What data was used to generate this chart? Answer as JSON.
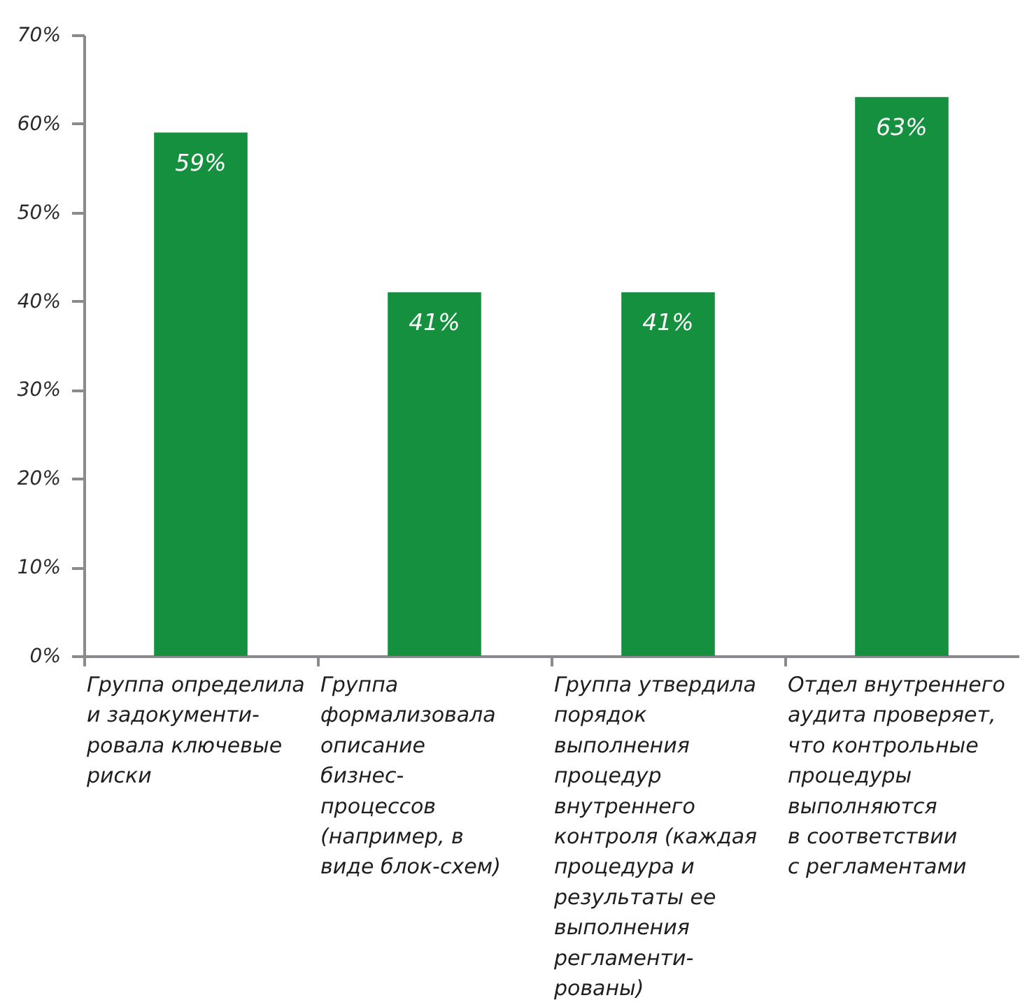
{
  "chart_data": {
    "type": "bar",
    "categories": [
      "Группа определила\nи задокументи-\nровала ключевые\nриски",
      "Группа\nформализовала\nописание\nбизнес-\nпроцессов\n(например, в\nвиде блок-схем)",
      "Группа утвердила\nпорядок\nвыполнения\nпроцедур\nвнутреннего\nконтроля (каждая\nпроцедура и\nрезультаты ее\nвыполнения\nрегламенти-\nрованы)",
      "Отдел внутреннего\nаудита проверяет,\nчто контрольные\nпроцедуры\nвыполняются\nв соответствии\nс регламентами"
    ],
    "values": [
      59,
      41,
      41,
      63
    ],
    "color": "#15903f",
    "value_labels": [
      "59%",
      "41%",
      "41%",
      "63%"
    ],
    "ylim": [
      0,
      70
    ],
    "yticks": [
      {
        "value": 0,
        "label": "0%"
      },
      {
        "value": 10,
        "label": "10%"
      },
      {
        "value": 20,
        "label": "20%"
      },
      {
        "value": 30,
        "label": "30%"
      },
      {
        "value": 40,
        "label": "40%"
      },
      {
        "value": 50,
        "label": "50%"
      },
      {
        "value": 60,
        "label": "60%"
      },
      {
        "value": 70,
        "label": "70%"
      }
    ]
  }
}
